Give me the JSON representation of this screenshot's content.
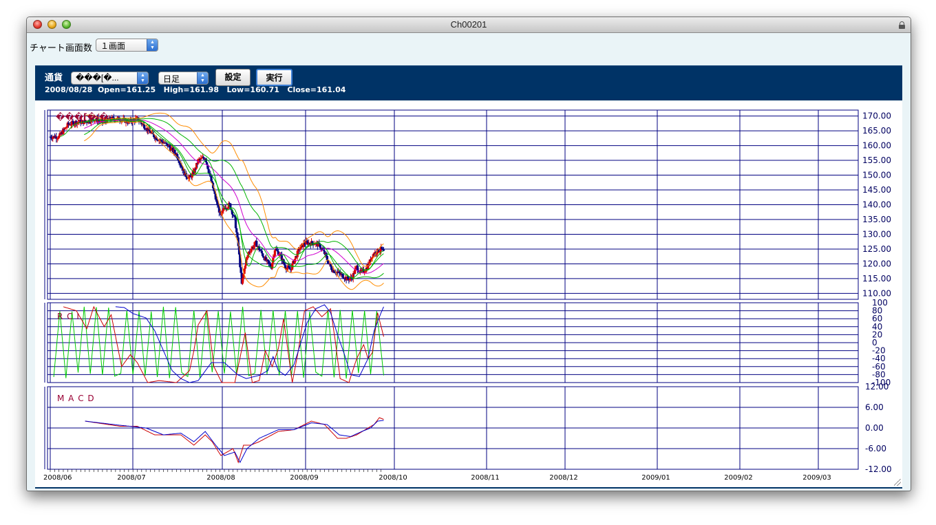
{
  "window": {
    "title": "Ch00201"
  },
  "toolbar": {
    "screens_label": "チャート画面数",
    "screens_value": "１画面"
  },
  "panel": {
    "currency_label": "通貨",
    "currency_value": "���[�...",
    "period_value": "日足",
    "settings_button": "設定",
    "run_button": "実行",
    "ohlc_date": "2008/08/28",
    "ohlc_open": "Open=161.25",
    "ohlc_high": "High=161.98",
    "ohlc_low": "Low=160.71",
    "ohlc_close": "Close=161.04"
  },
  "chart_data": {
    "type": "line",
    "price_label": "���[�/�",
    "x_labels": [
      "2008/06",
      "2008/07",
      "2008/08",
      "2008/09",
      "2008/10",
      "2008/11",
      "2008/12",
      "2009/01",
      "2009/02",
      "2009/03"
    ],
    "price_axis": {
      "ticks": [
        170,
        165,
        160,
        155,
        150,
        145,
        140,
        135,
        130,
        125,
        120,
        115,
        110
      ],
      "ylim": [
        108,
        172
      ]
    },
    "rci_panel": {
      "title": "R C I",
      "ticks": [
        100,
        80,
        60,
        40,
        20,
        0,
        -20,
        -40,
        -60,
        -80,
        -100
      ],
      "ylim": [
        -100,
        100
      ]
    },
    "macd_panel": {
      "title": "M A C D",
      "ticks": [
        12,
        6,
        0,
        -6,
        -12
      ],
      "ylim": [
        -12,
        12
      ]
    },
    "colors": {
      "up": "#dd0000",
      "down": "#000080",
      "grid": "#000080",
      "ma_short": "#00b400",
      "ma_mid": "#d000d0",
      "ma_long": "#00b400",
      "band": "#ff8c00",
      "rci_fast": "#00cc00",
      "rci_mid": "#cc0000",
      "rci_slow": "#0000cc",
      "macd": "#cc0000",
      "signal": "#0000cc"
    },
    "price_close_anchors": [
      [
        0,
        163
      ],
      [
        10,
        163
      ],
      [
        20,
        167
      ],
      [
        30,
        168
      ],
      [
        40,
        168
      ],
      [
        50,
        169
      ],
      [
        60,
        168
      ],
      [
        70,
        169
      ],
      [
        80,
        169
      ],
      [
        90,
        168
      ],
      [
        100,
        169
      ],
      [
        110,
        166
      ],
      [
        120,
        163
      ],
      [
        125,
        162
      ],
      [
        135,
        160
      ],
      [
        145,
        157
      ],
      [
        155,
        150
      ],
      [
        160,
        149
      ],
      [
        165,
        151
      ],
      [
        170,
        155
      ],
      [
        178,
        156
      ],
      [
        185,
        148
      ],
      [
        190,
        142
      ],
      [
        196,
        136
      ],
      [
        200,
        139
      ],
      [
        206,
        140
      ],
      [
        212,
        135
      ],
      [
        216,
        126
      ],
      [
        220,
        113
      ],
      [
        224,
        120
      ],
      [
        228,
        124
      ],
      [
        236,
        127
      ],
      [
        242,
        124
      ],
      [
        248,
        121
      ],
      [
        254,
        119
      ],
      [
        258,
        125
      ],
      [
        264,
        123
      ],
      [
        270,
        119
      ],
      [
        276,
        118
      ],
      [
        280,
        121
      ],
      [
        286,
        125
      ],
      [
        292,
        127
      ],
      [
        298,
        127
      ],
      [
        304,
        127
      ],
      [
        310,
        126
      ],
      [
        316,
        123
      ],
      [
        320,
        120
      ],
      [
        324,
        118
      ],
      [
        330,
        117
      ],
      [
        336,
        116
      ],
      [
        340,
        115
      ],
      [
        346,
        115
      ],
      [
        352,
        119
      ],
      [
        356,
        117
      ],
      [
        362,
        118
      ],
      [
        366,
        120
      ],
      [
        370,
        123
      ],
      [
        374,
        124
      ],
      [
        380,
        125
      ],
      [
        383,
        124
      ]
    ],
    "rci_slow_anchors": [
      [
        75,
        90
      ],
      [
        85,
        88
      ],
      [
        95,
        73
      ],
      [
        110,
        62
      ],
      [
        120,
        30
      ],
      [
        130,
        -20
      ],
      [
        140,
        -70
      ],
      [
        150,
        -90
      ],
      [
        160,
        -100
      ],
      [
        170,
        -95
      ],
      [
        175,
        -80
      ],
      [
        185,
        -50
      ],
      [
        200,
        -50
      ],
      [
        215,
        -80
      ],
      [
        225,
        -90
      ],
      [
        240,
        -82
      ],
      [
        250,
        -70
      ],
      [
        256,
        -35
      ],
      [
        262,
        -70
      ],
      [
        270,
        -82
      ],
      [
        280,
        -55
      ],
      [
        285,
        -20
      ],
      [
        295,
        50
      ],
      [
        305,
        85
      ],
      [
        315,
        95
      ],
      [
        322,
        75
      ],
      [
        330,
        20
      ],
      [
        338,
        -30
      ],
      [
        345,
        -80
      ],
      [
        355,
        -85
      ],
      [
        365,
        -40
      ],
      [
        372,
        30
      ],
      [
        380,
        75
      ],
      [
        383,
        90
      ]
    ],
    "rci_mid_anchors": [
      [
        15,
        90
      ],
      [
        30,
        80
      ],
      [
        42,
        35
      ],
      [
        50,
        90
      ],
      [
        62,
        40
      ],
      [
        70,
        70
      ],
      [
        82,
        -60
      ],
      [
        92,
        -30
      ],
      [
        100,
        -50
      ],
      [
        112,
        -100
      ],
      [
        125,
        -95
      ],
      [
        145,
        -100
      ],
      [
        160,
        -70
      ],
      [
        165,
        -20
      ],
      [
        170,
        45
      ],
      [
        180,
        80
      ],
      [
        188,
        -60
      ],
      [
        197,
        -100
      ],
      [
        212,
        -100
      ],
      [
        224,
        25
      ],
      [
        232,
        -100
      ],
      [
        240,
        -95
      ],
      [
        247,
        -20
      ],
      [
        255,
        -60
      ],
      [
        262,
        -15
      ],
      [
        268,
        60
      ],
      [
        278,
        -100
      ],
      [
        285,
        -20
      ],
      [
        292,
        80
      ],
      [
        302,
        90
      ],
      [
        312,
        65
      ],
      [
        322,
        85
      ],
      [
        327,
        10
      ],
      [
        333,
        -90
      ],
      [
        343,
        -100
      ],
      [
        352,
        -40
      ],
      [
        360,
        -5
      ],
      [
        365,
        -40
      ],
      [
        370,
        -25
      ],
      [
        376,
        75
      ],
      [
        383,
        15
      ]
    ],
    "macd_anchors": [
      [
        40,
        2
      ],
      [
        80,
        0.5
      ],
      [
        100,
        0.5
      ],
      [
        120,
        -2
      ],
      [
        150,
        -2
      ],
      [
        165,
        -5
      ],
      [
        178,
        -2
      ],
      [
        186,
        -4
      ],
      [
        196,
        -8
      ],
      [
        210,
        -6
      ],
      [
        216,
        -10
      ],
      [
        222,
        -5
      ],
      [
        230,
        -5
      ],
      [
        240,
        -4
      ],
      [
        262,
        -1
      ],
      [
        280,
        -0.5
      ],
      [
        300,
        2
      ],
      [
        315,
        1
      ],
      [
        330,
        -3
      ],
      [
        340,
        -3
      ],
      [
        352,
        -2
      ],
      [
        365,
        0
      ],
      [
        372,
        1
      ],
      [
        378,
        3
      ],
      [
        383,
        2.5
      ]
    ],
    "signal_anchors": [
      [
        40,
        2
      ],
      [
        80,
        0.8
      ],
      [
        110,
        0
      ],
      [
        130,
        -2
      ],
      [
        150,
        -1.5
      ],
      [
        165,
        -4
      ],
      [
        178,
        -1
      ],
      [
        190,
        -5
      ],
      [
        200,
        -8
      ],
      [
        212,
        -7
      ],
      [
        218,
        -10
      ],
      [
        226,
        -6
      ],
      [
        240,
        -3
      ],
      [
        262,
        -0.5
      ],
      [
        280,
        -0.5
      ],
      [
        300,
        1.5
      ],
      [
        318,
        1
      ],
      [
        332,
        -2
      ],
      [
        345,
        -2.5
      ],
      [
        358,
        -1
      ],
      [
        368,
        0
      ],
      [
        376,
        2
      ],
      [
        383,
        2.2
      ]
    ]
  }
}
